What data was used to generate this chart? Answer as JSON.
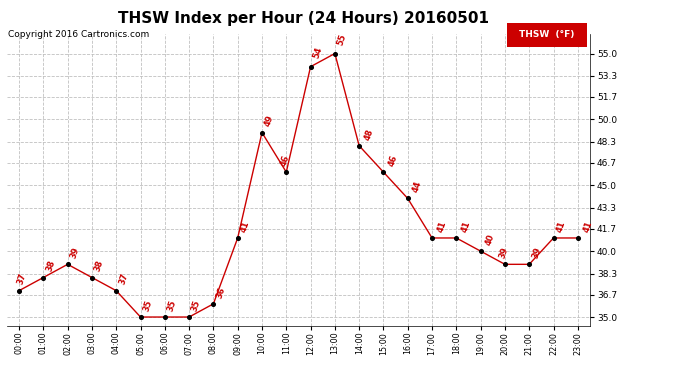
{
  "title": "THSW Index per Hour (24 Hours) 20160501",
  "copyright": "Copyright 2016 Cartronics.com",
  "legend_label": "THSW  (°F)",
  "hours": [
    0,
    1,
    2,
    3,
    4,
    5,
    6,
    7,
    8,
    9,
    10,
    11,
    12,
    13,
    14,
    15,
    16,
    17,
    18,
    19,
    20,
    21,
    22,
    23
  ],
  "values": [
    37,
    38,
    39,
    38,
    37,
    35,
    35,
    35,
    36,
    41,
    49,
    46,
    54,
    55,
    48,
    46,
    44,
    41,
    41,
    40,
    39,
    39,
    41,
    41
  ],
  "x_labels": [
    "00:00",
    "01:00",
    "02:00",
    "03:00",
    "04:00",
    "05:00",
    "06:00",
    "07:00",
    "08:00",
    "09:00",
    "10:00",
    "11:00",
    "12:00",
    "13:00",
    "14:00",
    "15:00",
    "16:00",
    "17:00",
    "18:00",
    "19:00",
    "20:00",
    "21:00",
    "22:00",
    "23:00"
  ],
  "y_ticks": [
    35.0,
    36.7,
    38.3,
    40.0,
    41.7,
    43.3,
    45.0,
    46.7,
    48.3,
    50.0,
    51.7,
    53.3,
    55.0
  ],
  "ylim": [
    34.3,
    56.5
  ],
  "xlim": [
    -0.5,
    23.5
  ],
  "line_color": "#cc0000",
  "marker_color": "#000000",
  "label_color": "#cc0000",
  "bg_color": "#ffffff",
  "grid_color": "#c0c0c0",
  "title_fontsize": 11,
  "copyright_fontsize": 6.5,
  "label_fontsize": 6.0
}
